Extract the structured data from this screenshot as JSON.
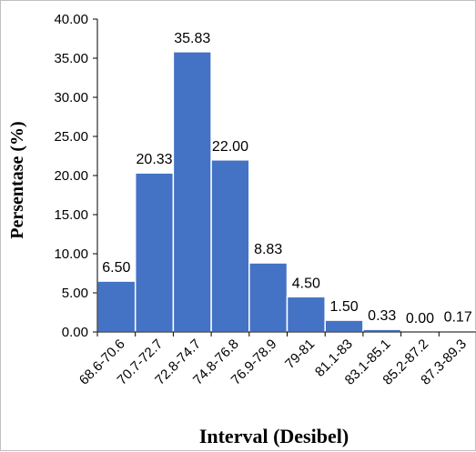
{
  "chart_data": {
    "type": "bar",
    "categories": [
      "68.6-70.6",
      "70.7-72.7",
      "72.8-74.7",
      "74.8-76.8",
      "76.9-78.9",
      "79-81",
      "81.1-83",
      "83.1-85.1",
      "85.2-87.2",
      "87.3-89.3"
    ],
    "values": [
      6.5,
      20.33,
      35.83,
      22.0,
      8.83,
      4.5,
      1.5,
      0.33,
      0.0,
      0.17
    ],
    "value_labels": [
      "6.50",
      "20.33",
      "35.83",
      "22.00",
      "8.83",
      "4.50",
      "1.50",
      "0.33",
      "0.00",
      "0.17"
    ],
    "yticks": [
      "0.00",
      "5.00",
      "10.00",
      "15.00",
      "20.00",
      "25.00",
      "30.00",
      "35.00",
      "40.00"
    ],
    "title": "",
    "xlabel": "Interval (Desibel)",
    "ylabel": "Persentase (%)",
    "ylim": [
      0,
      40
    ],
    "bar_color": "#4472c4",
    "grid": false,
    "legend": "none"
  }
}
